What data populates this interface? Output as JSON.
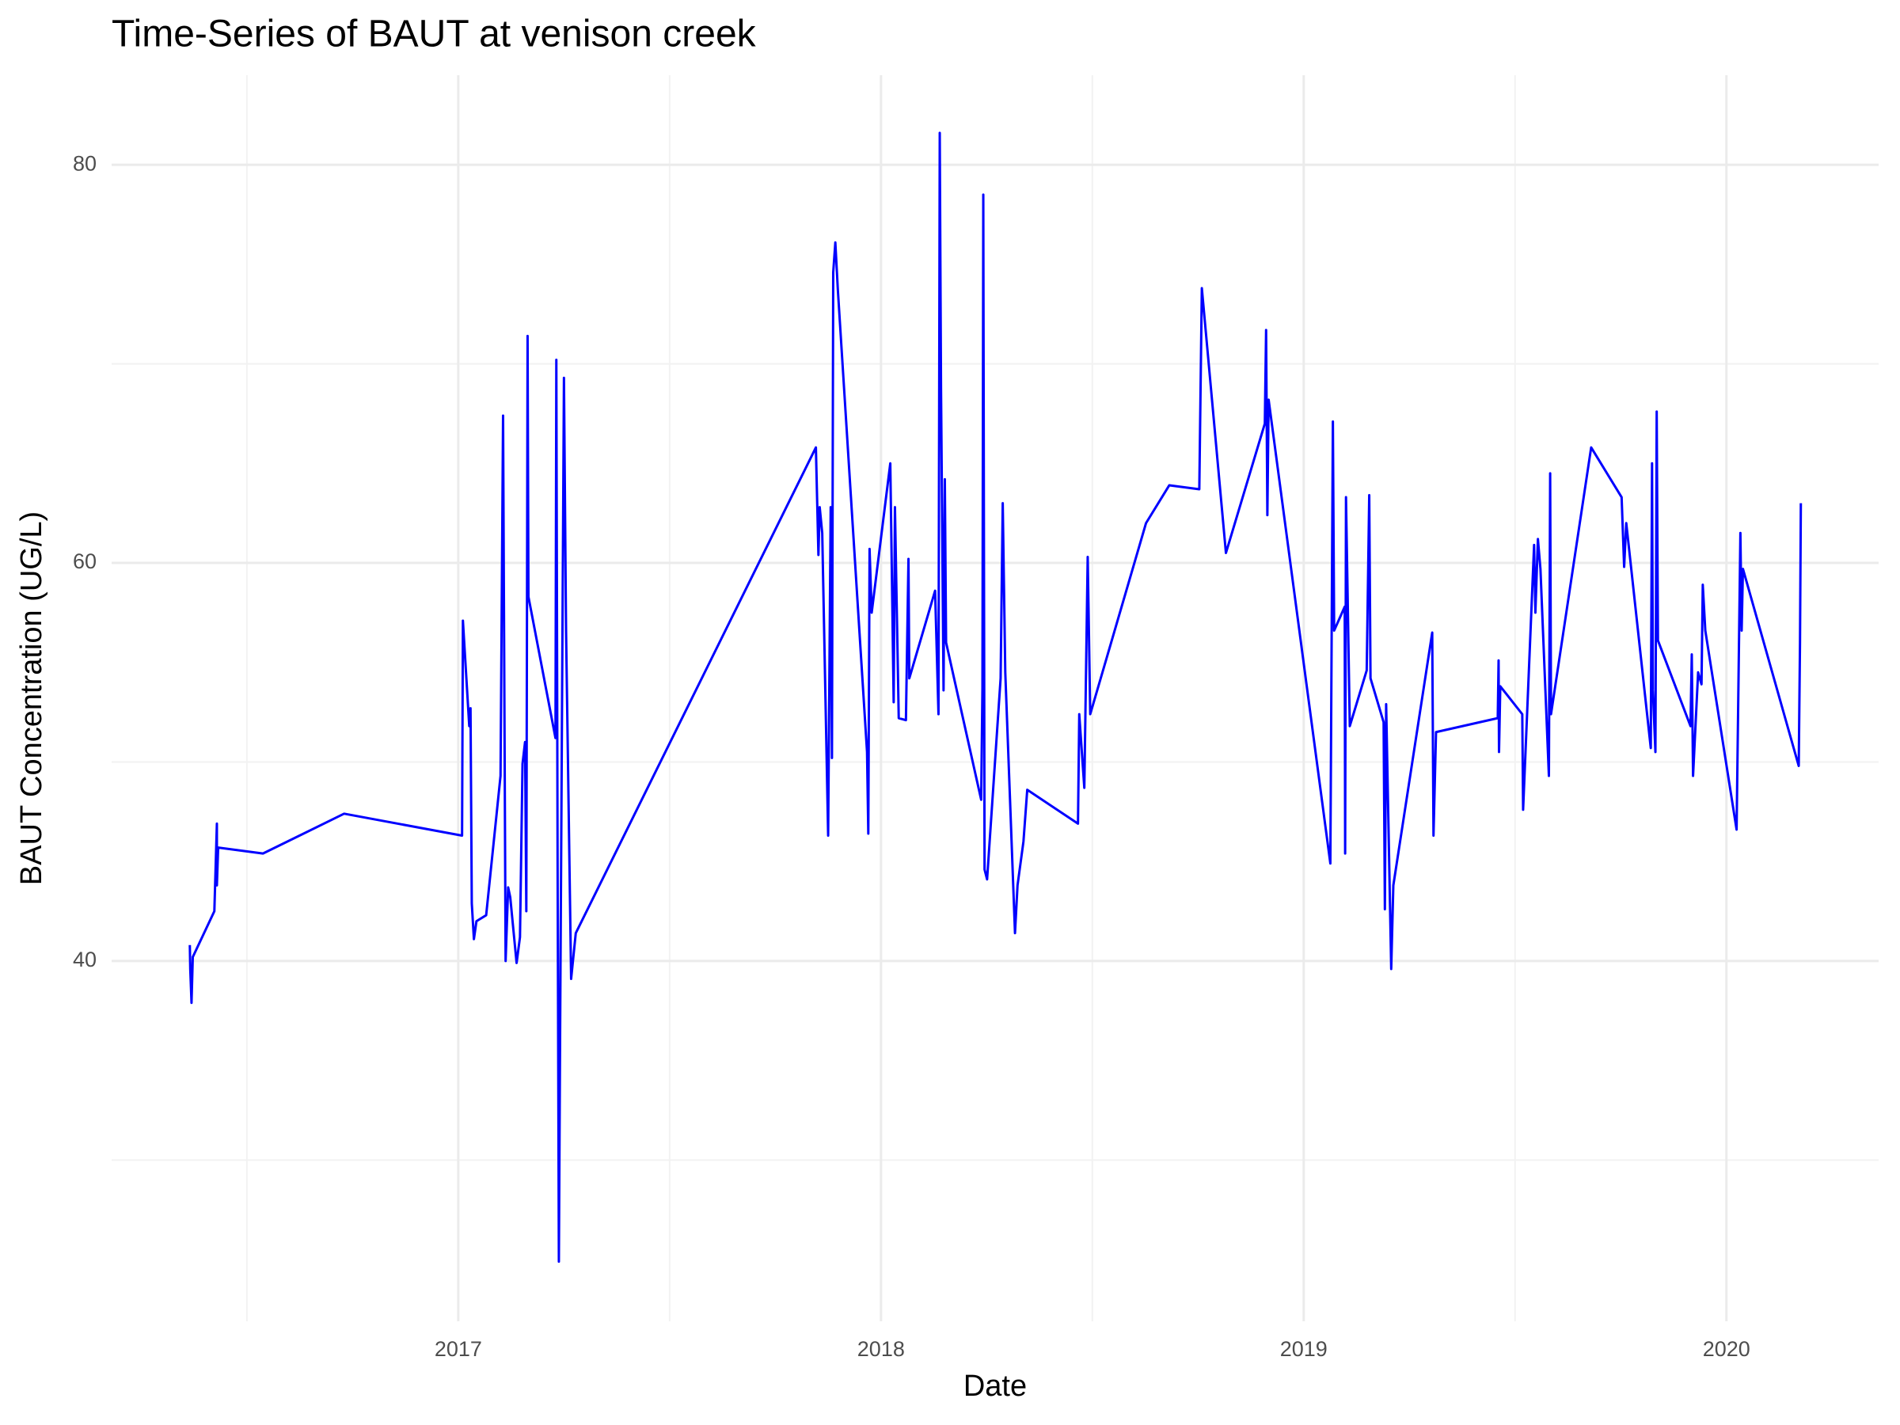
{
  "chart_data": {
    "type": "line",
    "title": "Time-Series of BAUT at venison creek",
    "x_label": "Date",
    "y_label": "BAUT Concentration (UG/L)",
    "color": "#0000ff",
    "grid": true,
    "minor_grid": true,
    "xlim": [
      2016.18,
      2020.36
    ],
    "ylim": [
      21.9,
      84.5
    ],
    "xticks": [
      2017,
      2018,
      2019,
      2020
    ],
    "yticks": [
      40,
      60,
      80
    ],
    "x": [
      2016.365,
      2016.366,
      2016.369,
      2016.372,
      2016.423,
      2016.429,
      2016.429,
      2016.432,
      2016.538,
      2016.73,
      2017.009,
      2017.011,
      2017.026,
      2017.029,
      2017.032,
      2017.037,
      2017.043,
      2017.066,
      2017.1,
      2017.106,
      2017.112,
      2017.118,
      2017.123,
      2017.138,
      2017.146,
      2017.152,
      2017.158,
      2017.161,
      2017.164,
      2017.166,
      2017.23,
      2017.232,
      2017.235,
      2017.238,
      2017.241,
      2017.25,
      2017.255,
      2017.267,
      2017.278,
      2017.846,
      2017.852,
      2017.855,
      2017.861,
      2017.875,
      2017.881,
      2017.884,
      2017.887,
      2017.892,
      2017.898,
      2017.967,
      2017.97,
      2017.973,
      2017.978,
      2018.022,
      2018.03,
      2018.033,
      2018.042,
      2018.059,
      2018.065,
      2018.067,
      2018.128,
      2018.136,
      2018.139,
      2018.142,
      2018.148,
      2018.151,
      2018.154,
      2018.237,
      2018.24,
      2018.242,
      2018.245,
      2018.251,
      2018.283,
      2018.288,
      2018.294,
      2018.317,
      2018.323,
      2018.337,
      2018.346,
      2018.466,
      2018.469,
      2018.481,
      2018.489,
      2018.495,
      2018.627,
      2018.682,
      2018.753,
      2018.759,
      2018.816,
      2018.908,
      2018.911,
      2018.914,
      2018.917,
      2019.063,
      2019.069,
      2019.072,
      2019.097,
      2019.098,
      2019.1,
      2019.109,
      2019.149,
      2019.155,
      2019.158,
      2019.189,
      2019.192,
      2019.195,
      2019.207,
      2019.212,
      2019.304,
      2019.307,
      2019.313,
      2019.459,
      2019.461,
      2019.462,
      2019.465,
      2019.517,
      2019.519,
      2019.545,
      2019.548,
      2019.554,
      2019.56,
      2019.58,
      2019.583,
      2019.585,
      2019.68,
      2019.752,
      2019.758,
      2019.763,
      2019.821,
      2019.824,
      2019.826,
      2019.832,
      2019.835,
      2019.838,
      2019.915,
      2019.918,
      2019.921,
      2019.933,
      2019.941,
      2019.944,
      2019.95,
      2020.024,
      2020.033,
      2020.036,
      2020.039,
      2020.171,
      2020.174,
      2020.176
    ],
    "values": [
      40.8,
      39.6,
      37.9,
      40.2,
      42.5,
      46.9,
      43.8,
      45.7,
      45.4,
      47.4,
      46.3,
      57.1,
      51.8,
      52.7,
      42.9,
      41.1,
      42.0,
      42.3,
      49.3,
      67.4,
      40.0,
      43.7,
      43.2,
      39.9,
      41.2,
      49.9,
      51.0,
      42.5,
      71.4,
      58.3,
      51.2,
      70.2,
      44.9,
      24.9,
      36.5,
      69.3,
      56.6,
      39.1,
      41.4,
      65.8,
      60.4,
      62.8,
      61.5,
      46.3,
      62.8,
      50.2,
      74.6,
      76.1,
      73.7,
      50.5,
      46.4,
      60.7,
      57.5,
      65.0,
      53.0,
      62.8,
      52.2,
      52.1,
      60.2,
      54.2,
      58.6,
      52.4,
      81.6,
      68.8,
      53.6,
      64.2,
      56.0,
      48.1,
      53.7,
      78.5,
      44.6,
      44.1,
      54.2,
      63.0,
      54.5,
      41.4,
      43.8,
      46.0,
      48.6,
      46.9,
      52.4,
      48.7,
      60.3,
      52.4,
      62.0,
      63.9,
      63.7,
      73.8,
      60.5,
      67.0,
      71.7,
      62.4,
      68.2,
      44.9,
      67.1,
      56.6,
      57.8,
      45.4,
      63.3,
      51.8,
      54.6,
      63.4,
      54.2,
      52.0,
      42.6,
      52.9,
      39.6,
      43.8,
      56.5,
      46.3,
      51.5,
      52.2,
      55.1,
      50.5,
      53.8,
      52.4,
      47.6,
      60.9,
      57.5,
      61.2,
      59.7,
      49.3,
      64.5,
      52.4,
      65.8,
      63.3,
      59.8,
      62.0,
      50.7,
      65.0,
      53.6,
      50.5,
      67.6,
      56.1,
      51.8,
      55.4,
      49.3,
      54.5,
      53.9,
      58.9,
      56.6,
      46.6,
      61.5,
      56.6,
      59.7,
      49.8,
      56.0,
      63.0
    ]
  }
}
